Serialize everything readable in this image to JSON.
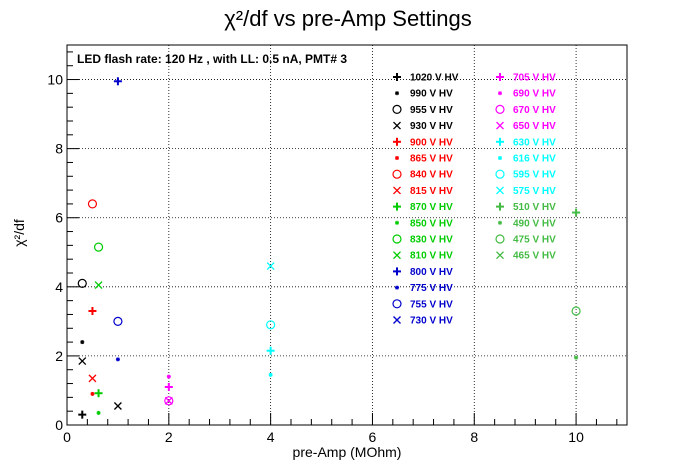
{
  "chart_data": {
    "type": "scatter",
    "title": "χ²/df vs pre-Amp Settings",
    "xlabel": "pre-Amp (MOhm)",
    "ylabel": "χ²/df",
    "xlim": [
      0,
      11
    ],
    "ylim": [
      0,
      11
    ],
    "x_ticks": [
      "0",
      "2",
      "4",
      "6",
      "8",
      "10"
    ],
    "y_ticks": [
      "0",
      "2",
      "4",
      "6",
      "8",
      "10"
    ],
    "grid": true,
    "annotation": "LED flash rate: 120 Hz , with LL: 0.5 nA, PMT# 3",
    "legend_position": "top-right inside plot",
    "series": [
      {
        "name": "1020 V HV",
        "color": "#000000",
        "marker": "plus",
        "points": [
          [
            0.3,
            0.3
          ]
        ]
      },
      {
        "name": "990 V HV",
        "color": "#000000",
        "marker": "star",
        "points": [
          [
            0.3,
            2.4
          ]
        ]
      },
      {
        "name": "955 V HV",
        "color": "#000000",
        "marker": "circle",
        "points": [
          [
            0.3,
            4.1
          ]
        ]
      },
      {
        "name": "930 V HV",
        "color": "#000000",
        "marker": "x",
        "points": [
          [
            0.3,
            1.85
          ],
          [
            1.0,
            0.55
          ]
        ]
      },
      {
        "name": "900 V HV",
        "color": "#ff0000",
        "marker": "plus",
        "points": [
          [
            0.5,
            3.3
          ]
        ]
      },
      {
        "name": "865 V HV",
        "color": "#ff0000",
        "marker": "star",
        "points": [
          [
            0.5,
            0.9
          ]
        ]
      },
      {
        "name": "840 V HV",
        "color": "#ff0000",
        "marker": "circle",
        "points": [
          [
            0.5,
            6.4
          ]
        ]
      },
      {
        "name": "815 V HV",
        "color": "#ff0000",
        "marker": "x",
        "points": [
          [
            0.5,
            1.35
          ]
        ]
      },
      {
        "name": "870 V HV",
        "color": "#00cc00",
        "marker": "plus",
        "points": [
          [
            0.62,
            0.92
          ]
        ]
      },
      {
        "name": "850 V HV",
        "color": "#00cc00",
        "marker": "star",
        "points": [
          [
            0.62,
            0.35
          ]
        ]
      },
      {
        "name": "830 V HV",
        "color": "#00cc00",
        "marker": "circle",
        "points": [
          [
            0.62,
            5.15
          ]
        ]
      },
      {
        "name": "810 V HV",
        "color": "#00cc00",
        "marker": "x",
        "points": [
          [
            0.62,
            4.05
          ]
        ]
      },
      {
        "name": "800 V HV",
        "color": "#0000cc",
        "marker": "plus",
        "points": [
          [
            1.0,
            9.95
          ]
        ]
      },
      {
        "name": "775 V HV",
        "color": "#0000cc",
        "marker": "star",
        "points": [
          [
            1.0,
            1.9
          ]
        ]
      },
      {
        "name": "755 V HV",
        "color": "#0000cc",
        "marker": "circle",
        "points": [
          [
            1.0,
            3.0
          ]
        ]
      },
      {
        "name": "730 V HV",
        "color": "#0000cc",
        "marker": "x",
        "points": []
      },
      {
        "name": "705 V HV",
        "color": "#ff00ff",
        "marker": "plus",
        "points": [
          [
            2.0,
            1.1
          ]
        ]
      },
      {
        "name": "690 V HV",
        "color": "#ff00ff",
        "marker": "star",
        "points": [
          [
            2.0,
            1.4
          ]
        ]
      },
      {
        "name": "670 V HV",
        "color": "#ff00ff",
        "marker": "circle",
        "points": [
          [
            2.0,
            0.7
          ]
        ]
      },
      {
        "name": "650 V HV",
        "color": "#ff00ff",
        "marker": "x",
        "points": [
          [
            2.0,
            0.7
          ]
        ]
      },
      {
        "name": "630 V HV",
        "color": "#00ffff",
        "marker": "plus",
        "points": [
          [
            4.0,
            2.15
          ]
        ]
      },
      {
        "name": "616 V HV",
        "color": "#00ffff",
        "marker": "star",
        "points": [
          [
            4.0,
            1.45
          ]
        ]
      },
      {
        "name": "595 V HV",
        "color": "#00ffff",
        "marker": "circle",
        "points": [
          [
            4.0,
            2.9
          ]
        ]
      },
      {
        "name": "575 V HV",
        "color": "#00ffff",
        "marker": "x",
        "points": [
          [
            4.0,
            4.6
          ]
        ]
      },
      {
        "name": "510 V HV",
        "color": "#44bb44",
        "marker": "plus",
        "points": [
          [
            10.0,
            6.15
          ]
        ]
      },
      {
        "name": "490 V HV",
        "color": "#44bb44",
        "marker": "star",
        "points": [
          [
            10.0,
            1.95
          ]
        ]
      },
      {
        "name": "475 V HV",
        "color": "#44bb44",
        "marker": "circle",
        "points": [
          [
            10.0,
            3.3
          ]
        ]
      },
      {
        "name": "465 V HV",
        "color": "#44bb44",
        "marker": "x",
        "points": []
      }
    ]
  }
}
